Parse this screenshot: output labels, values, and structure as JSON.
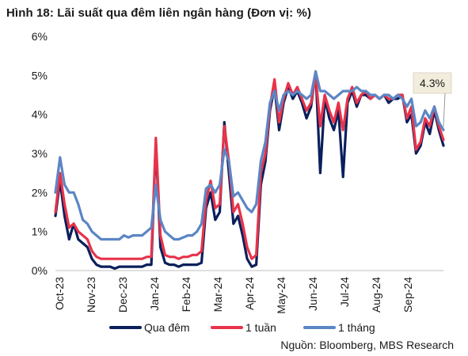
{
  "chart_data": {
    "type": "line",
    "title": "Hình 18: Lãi suất qua đêm liên ngân hàng (Đơn vị: %)",
    "source": "Nguồn: Bloomberg, MBS Research",
    "ylim": [
      0,
      6
    ],
    "yticks": [
      "0%",
      "1%",
      "2%",
      "3%",
      "4%",
      "5%",
      "6%"
    ],
    "x_tick_labels": [
      "Oct-23",
      "Nov-23",
      "Dec-23",
      "Jan-24",
      "Feb-24",
      "Mar-24",
      "Apr-24",
      "May-24",
      "Jun-24",
      "Jul-24",
      "Aug-24",
      "Sep-24"
    ],
    "grid": false,
    "legend": "bottom",
    "annotation": {
      "label": "4.3%",
      "series": "1 tháng"
    },
    "series": [
      {
        "name": "Qua đêm",
        "color": "#0b1f5c",
        "values": [
          1.4,
          2.3,
          1.4,
          0.8,
          1.2,
          0.8,
          0.7,
          0.6,
          0.3,
          0.15,
          0.1,
          0.1,
          0.1,
          0.05,
          0.1,
          0.1,
          0.1,
          0.1,
          0.1,
          0.1,
          0.15,
          0.15,
          3.3,
          0.6,
          0.2,
          0.15,
          0.15,
          0.1,
          0.15,
          0.15,
          0.15,
          0.15,
          0.2,
          1.6,
          2.0,
          1.3,
          1.5,
          3.8,
          2.5,
          1.2,
          1.4,
          0.9,
          0.3,
          0.1,
          0.15,
          2.2,
          2.8,
          4.1,
          4.7,
          3.6,
          4.3,
          4.7,
          4.4,
          4.6,
          4.3,
          3.9,
          4.2,
          5.1,
          2.5,
          4.4,
          3.9,
          3.6,
          4.1,
          2.4,
          4.3,
          4.6,
          4.2,
          4.5,
          4.5,
          4.4,
          4.5,
          4.4,
          4.5,
          4.3,
          4.4,
          4.4,
          4.5,
          3.8,
          4.0,
          3.0,
          3.2,
          3.8,
          3.5,
          4.1,
          3.6,
          3.2
        ]
      },
      {
        "name": "1 tuần",
        "color": "#e8334a",
        "values": [
          1.5,
          2.5,
          1.7,
          1.1,
          1.2,
          1.0,
          0.9,
          0.8,
          0.5,
          0.35,
          0.3,
          0.3,
          0.3,
          0.3,
          0.3,
          0.3,
          0.3,
          0.3,
          0.3,
          0.3,
          0.35,
          0.35,
          3.4,
          0.9,
          0.4,
          0.35,
          0.35,
          0.3,
          0.35,
          0.35,
          0.4,
          0.4,
          0.5,
          1.8,
          2.3,
          1.6,
          1.7,
          3.7,
          2.8,
          1.5,
          1.7,
          1.2,
          0.6,
          0.3,
          0.4,
          2.5,
          3.0,
          4.2,
          4.9,
          3.8,
          4.4,
          4.8,
          4.5,
          4.7,
          4.4,
          4.1,
          4.3,
          5.0,
          3.7,
          4.5,
          4.1,
          3.8,
          4.3,
          3.6,
          4.4,
          4.7,
          4.3,
          4.5,
          4.6,
          4.4,
          4.5,
          4.4,
          4.5,
          4.4,
          4.4,
          4.5,
          4.5,
          3.9,
          4.2,
          3.1,
          3.3,
          3.9,
          3.7,
          4.2,
          3.7,
          3.35
        ]
      },
      {
        "name": "1 tháng",
        "color": "#5b86c5",
        "values": [
          2.0,
          2.9,
          2.2,
          2.0,
          2.0,
          1.7,
          1.3,
          1.2,
          1.0,
          0.9,
          0.8,
          0.8,
          0.8,
          0.8,
          0.8,
          0.9,
          0.85,
          0.9,
          0.9,
          0.9,
          1.0,
          1.1,
          2.2,
          1.3,
          1.0,
          0.9,
          0.8,
          0.8,
          0.85,
          0.9,
          0.9,
          1.0,
          1.2,
          2.1,
          2.2,
          2.0,
          2.2,
          3.1,
          2.8,
          1.9,
          2.0,
          1.8,
          1.6,
          1.5,
          1.7,
          2.8,
          3.3,
          4.3,
          4.6,
          4.1,
          4.5,
          4.6,
          4.5,
          4.6,
          4.5,
          4.4,
          4.5,
          5.1,
          4.6,
          4.6,
          4.5,
          4.4,
          4.5,
          4.6,
          4.6,
          4.6,
          4.7,
          4.6,
          4.6,
          4.5,
          4.5,
          4.4,
          4.5,
          4.5,
          4.4,
          4.5,
          4.4,
          4.2,
          4.4,
          3.7,
          3.8,
          4.1,
          3.9,
          4.2,
          3.8,
          3.6
        ]
      }
    ]
  }
}
